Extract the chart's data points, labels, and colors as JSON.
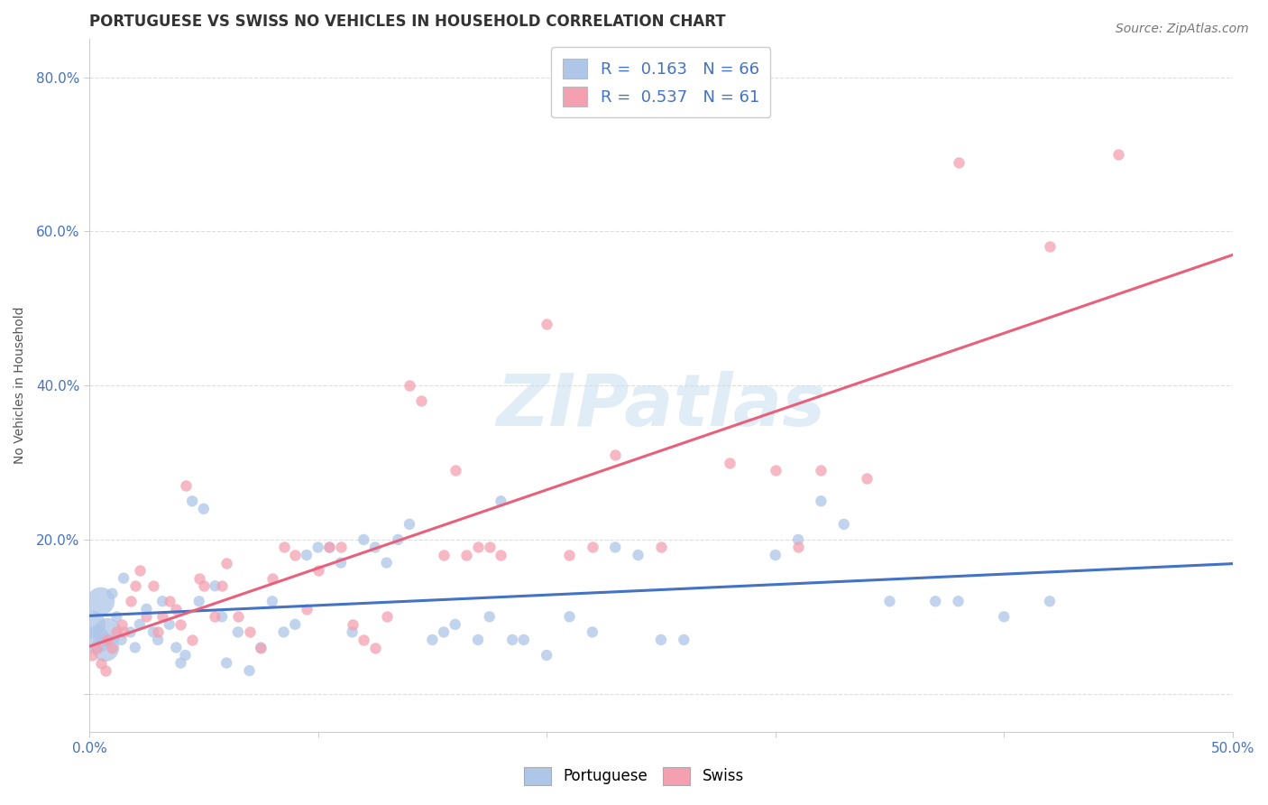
{
  "title": "PORTUGUESE VS SWISS NO VEHICLES IN HOUSEHOLD CORRELATION CHART",
  "source": "Source: ZipAtlas.com",
  "ylabel": "No Vehicles in Household",
  "xlabel": "",
  "xlim": [
    0.0,
    50.0
  ],
  "ylim": [
    -5.0,
    85.0
  ],
  "yticks": [
    0.0,
    20.0,
    40.0,
    60.0,
    80.0
  ],
  "ytick_labels": [
    "",
    "20.0%",
    "40.0%",
    "60.0%",
    "80.0%"
  ],
  "xticks": [
    0.0,
    10.0,
    20.0,
    30.0,
    40.0,
    50.0
  ],
  "xtick_labels": [
    "0.0%",
    "",
    "",
    "",
    "",
    "50.0%"
  ],
  "background": "#ffffff",
  "grid_color": "#dddddd",
  "portuguese_color": "#aec6e8",
  "swiss_color": "#f4a0b0",
  "portuguese_line_color": "#4472c4",
  "swiss_line_color": "#e8607a",
  "legend_R_portuguese": "R =  0.163",
  "legend_N_portuguese": "N = 66",
  "legend_R_swiss": "R =  0.537",
  "legend_N_swiss": "N = 61",
  "watermark": "ZIPatlas",
  "portuguese_points": [
    [
      0.1,
      9.0
    ],
    [
      0.3,
      7.0
    ],
    [
      0.5,
      12.0
    ],
    [
      0.7,
      6.0
    ],
    [
      0.8,
      8.0
    ],
    [
      1.0,
      13.0
    ],
    [
      1.2,
      10.0
    ],
    [
      1.4,
      7.0
    ],
    [
      1.5,
      15.0
    ],
    [
      1.8,
      8.0
    ],
    [
      2.0,
      6.0
    ],
    [
      2.2,
      9.0
    ],
    [
      2.5,
      11.0
    ],
    [
      2.8,
      8.0
    ],
    [
      3.0,
      7.0
    ],
    [
      3.2,
      12.0
    ],
    [
      3.5,
      9.0
    ],
    [
      3.8,
      6.0
    ],
    [
      4.0,
      4.0
    ],
    [
      4.2,
      5.0
    ],
    [
      4.5,
      25.0
    ],
    [
      4.8,
      12.0
    ],
    [
      5.0,
      24.0
    ],
    [
      5.5,
      14.0
    ],
    [
      5.8,
      10.0
    ],
    [
      6.0,
      4.0
    ],
    [
      6.5,
      8.0
    ],
    [
      7.0,
      3.0
    ],
    [
      7.5,
      6.0
    ],
    [
      8.0,
      12.0
    ],
    [
      8.5,
      8.0
    ],
    [
      9.0,
      9.0
    ],
    [
      9.5,
      18.0
    ],
    [
      10.0,
      19.0
    ],
    [
      10.5,
      19.0
    ],
    [
      11.0,
      17.0
    ],
    [
      11.5,
      8.0
    ],
    [
      12.0,
      20.0
    ],
    [
      12.5,
      19.0
    ],
    [
      13.0,
      17.0
    ],
    [
      13.5,
      20.0
    ],
    [
      14.0,
      22.0
    ],
    [
      15.0,
      7.0
    ],
    [
      15.5,
      8.0
    ],
    [
      16.0,
      9.0
    ],
    [
      17.0,
      7.0
    ],
    [
      17.5,
      10.0
    ],
    [
      18.0,
      25.0
    ],
    [
      18.5,
      7.0
    ],
    [
      19.0,
      7.0
    ],
    [
      20.0,
      5.0
    ],
    [
      21.0,
      10.0
    ],
    [
      22.0,
      8.0
    ],
    [
      23.0,
      19.0
    ],
    [
      24.0,
      18.0
    ],
    [
      25.0,
      7.0
    ],
    [
      26.0,
      7.0
    ],
    [
      30.0,
      18.0
    ],
    [
      31.0,
      20.0
    ],
    [
      32.0,
      25.0
    ],
    [
      33.0,
      22.0
    ],
    [
      35.0,
      12.0
    ],
    [
      37.0,
      12.0
    ],
    [
      38.0,
      12.0
    ],
    [
      40.0,
      10.0
    ],
    [
      42.0,
      12.0
    ]
  ],
  "swiss_points": [
    [
      0.1,
      5.0
    ],
    [
      0.3,
      6.0
    ],
    [
      0.5,
      4.0
    ],
    [
      0.7,
      3.0
    ],
    [
      0.8,
      7.0
    ],
    [
      1.0,
      6.0
    ],
    [
      1.2,
      8.0
    ],
    [
      1.4,
      9.0
    ],
    [
      1.5,
      8.0
    ],
    [
      1.8,
      12.0
    ],
    [
      2.0,
      14.0
    ],
    [
      2.2,
      16.0
    ],
    [
      2.5,
      10.0
    ],
    [
      2.8,
      14.0
    ],
    [
      3.0,
      8.0
    ],
    [
      3.2,
      10.0
    ],
    [
      3.5,
      12.0
    ],
    [
      3.8,
      11.0
    ],
    [
      4.0,
      9.0
    ],
    [
      4.2,
      27.0
    ],
    [
      4.5,
      7.0
    ],
    [
      4.8,
      15.0
    ],
    [
      5.0,
      14.0
    ],
    [
      5.5,
      10.0
    ],
    [
      5.8,
      14.0
    ],
    [
      6.0,
      17.0
    ],
    [
      6.5,
      10.0
    ],
    [
      7.0,
      8.0
    ],
    [
      7.5,
      6.0
    ],
    [
      8.0,
      15.0
    ],
    [
      8.5,
      19.0
    ],
    [
      9.0,
      18.0
    ],
    [
      9.5,
      11.0
    ],
    [
      10.0,
      16.0
    ],
    [
      10.5,
      19.0
    ],
    [
      11.0,
      19.0
    ],
    [
      11.5,
      9.0
    ],
    [
      12.0,
      7.0
    ],
    [
      12.5,
      6.0
    ],
    [
      13.0,
      10.0
    ],
    [
      14.0,
      40.0
    ],
    [
      14.5,
      38.0
    ],
    [
      15.5,
      18.0
    ],
    [
      16.0,
      29.0
    ],
    [
      16.5,
      18.0
    ],
    [
      17.0,
      19.0
    ],
    [
      17.5,
      19.0
    ],
    [
      18.0,
      18.0
    ],
    [
      20.0,
      48.0
    ],
    [
      21.0,
      18.0
    ],
    [
      22.0,
      19.0
    ],
    [
      23.0,
      31.0
    ],
    [
      25.0,
      19.0
    ],
    [
      28.0,
      30.0
    ],
    [
      30.0,
      29.0
    ],
    [
      31.0,
      19.0
    ],
    [
      32.0,
      29.0
    ],
    [
      34.0,
      28.0
    ],
    [
      38.0,
      69.0
    ],
    [
      42.0,
      58.0
    ],
    [
      45.0,
      70.0
    ]
  ],
  "portuguese_base_size": 80,
  "swiss_base_size": 80,
  "large_point_size": 500,
  "title_fontsize": 12,
  "axis_label_fontsize": 10,
  "tick_fontsize": 11,
  "legend_fontsize": 13,
  "source_fontsize": 10
}
